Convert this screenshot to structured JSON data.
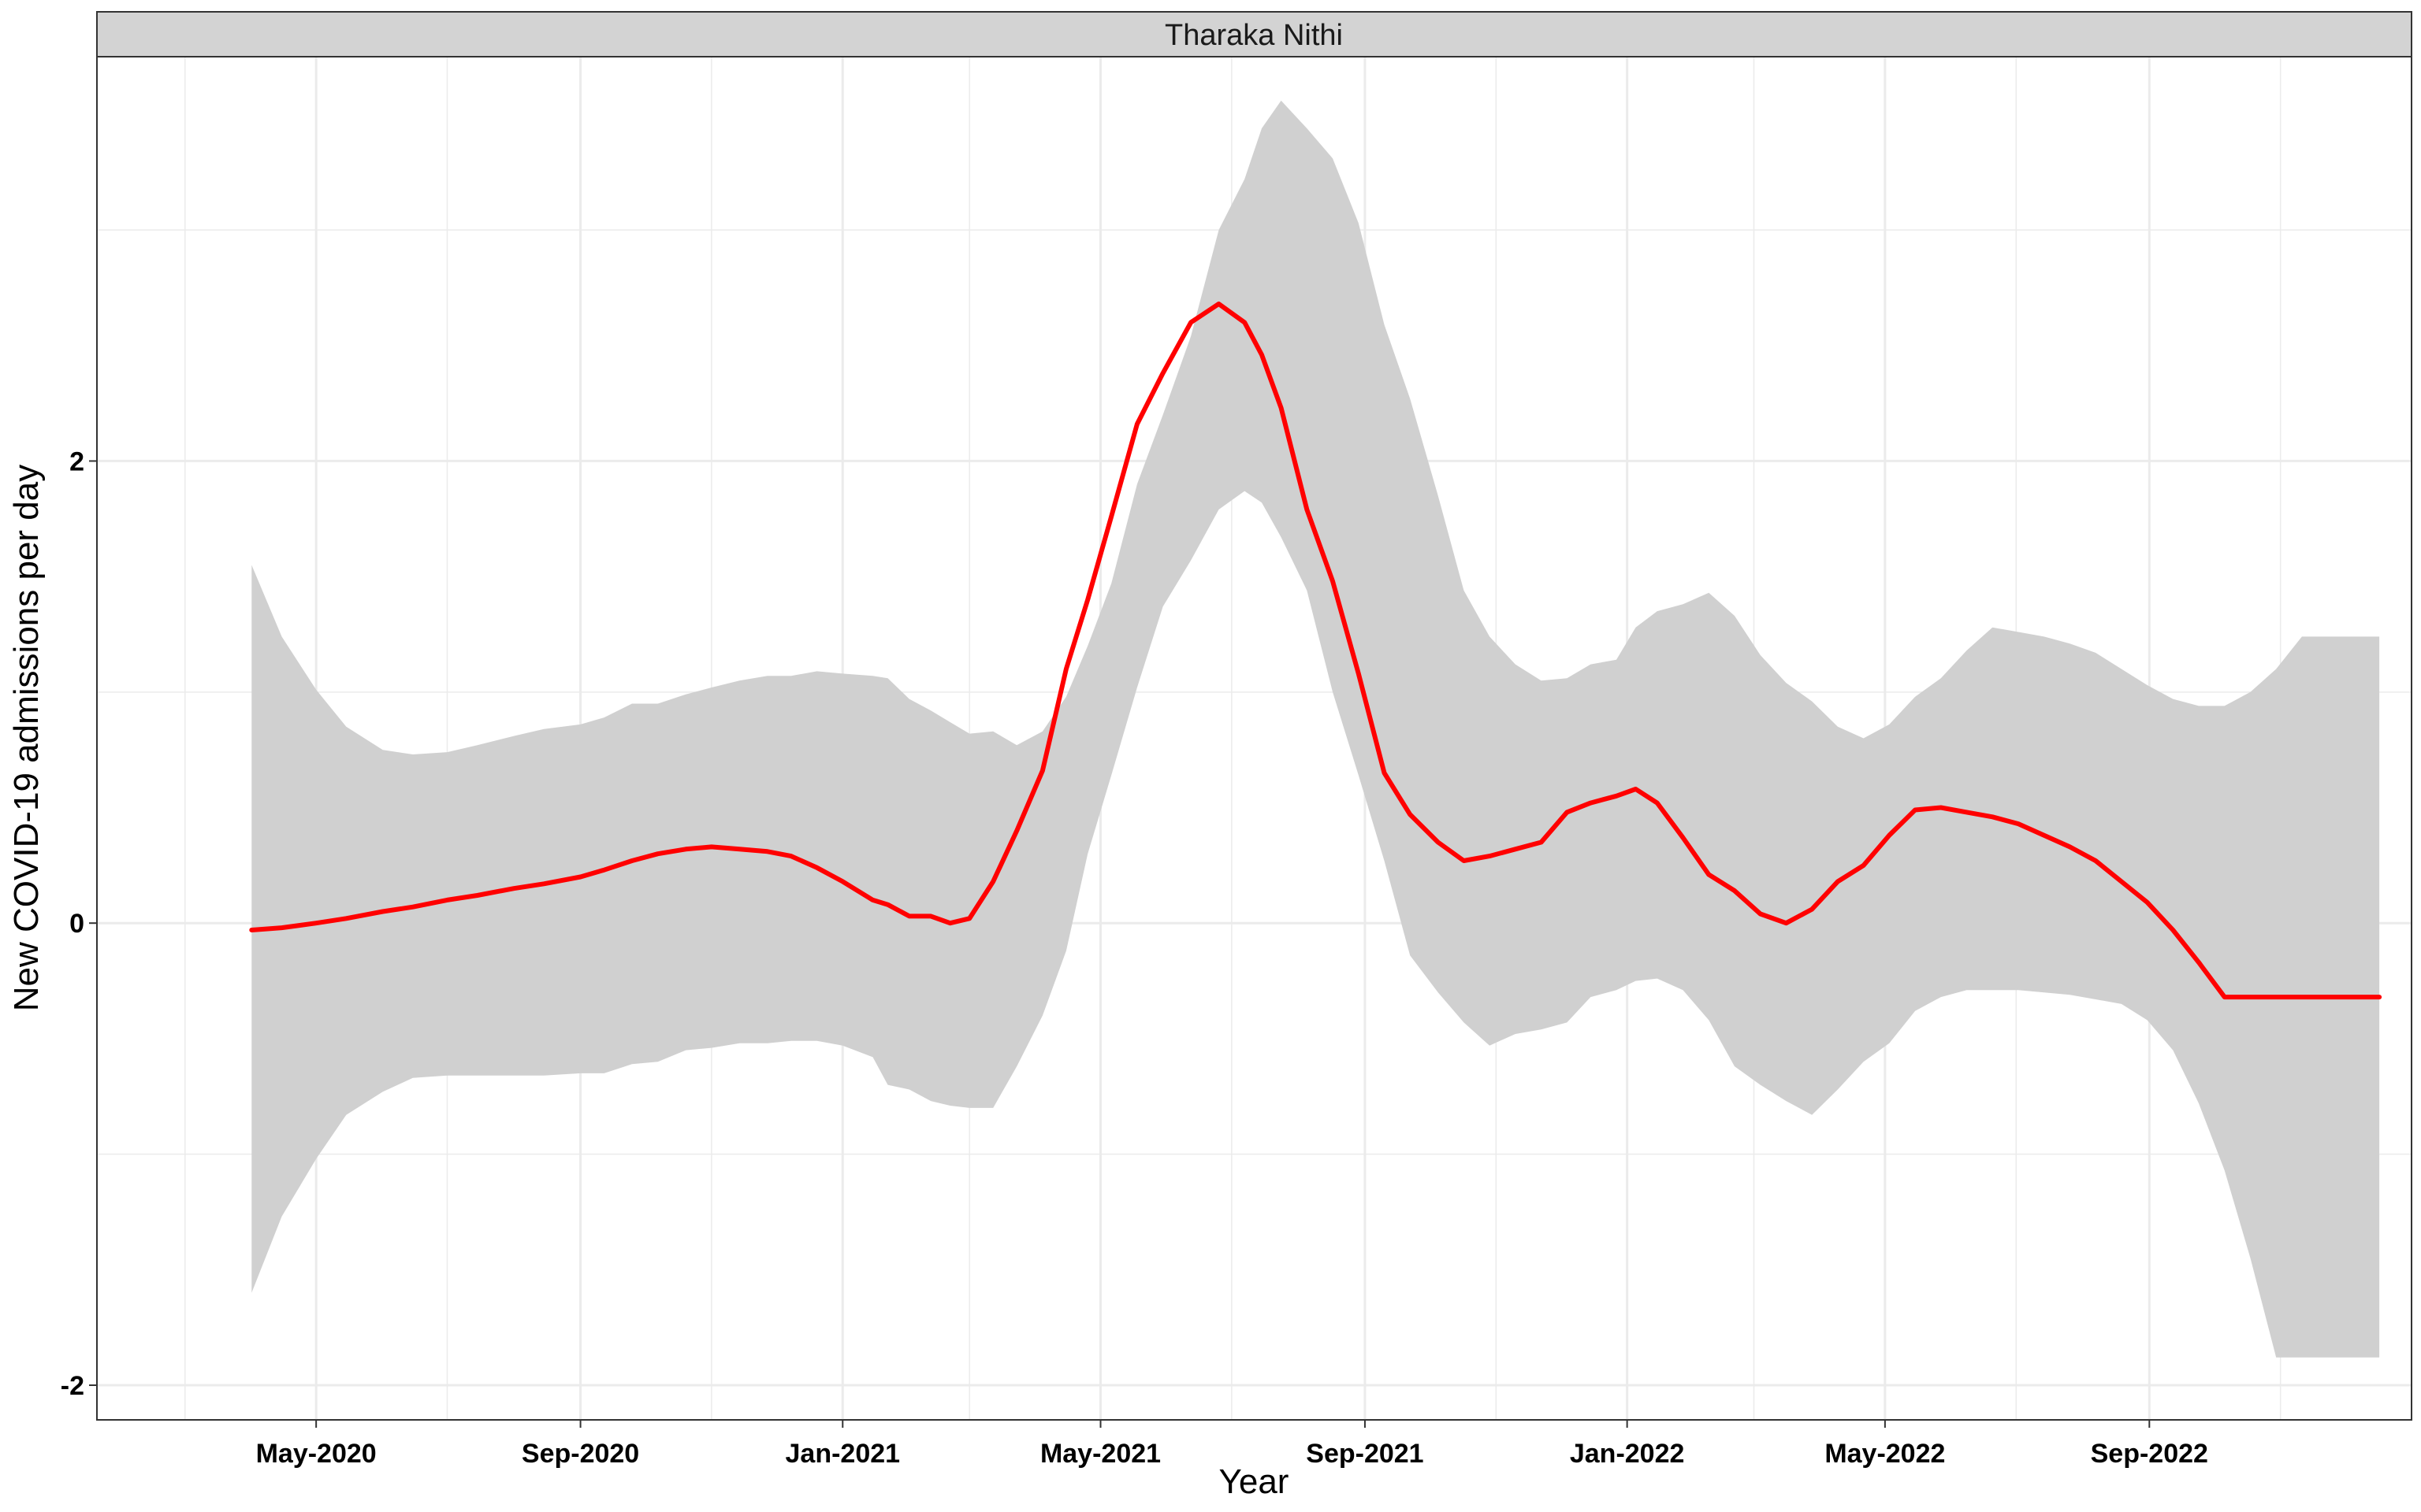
{
  "chart_data": {
    "type": "line",
    "facet_title": "Tharaka Nithi",
    "xlabel": "Year",
    "ylabel": "New COVID-19 admissions per day",
    "x_range": [
      "2020-01-20",
      "2023-01-01"
    ],
    "ylim": [
      -2.15,
      3.75
    ],
    "y_major_ticks": [
      -2,
      0,
      2
    ],
    "y_tick_labels": [
      "-2",
      "0",
      "2"
    ],
    "y_minor_ticks": [
      -1,
      1,
      3
    ],
    "x_major_ticks": [
      "2020-05-01",
      "2020-09-01",
      "2021-01-01",
      "2021-05-01",
      "2021-09-01",
      "2022-01-01",
      "2022-05-01",
      "2022-09-01"
    ],
    "x_tick_labels": [
      "May-2020",
      "Sep-2020",
      "Jan-2021",
      "May-2021",
      "Sep-2021",
      "Jan-2022",
      "May-2022",
      "Sep-2022"
    ],
    "x_minor_ticks": [
      "2020-03-01",
      "2020-07-01",
      "2020-11-01",
      "2021-03-01",
      "2021-07-01",
      "2021-11-01",
      "2022-03-01",
      "2022-07-01",
      "2022-11-01"
    ],
    "grid": true,
    "colors": {
      "line": "#ff0000",
      "ribbon": "#d0d0d0",
      "strip": "#d3d3d3",
      "grid": "#ebebeb"
    },
    "series": [
      {
        "x": [
          "2020-04-01",
          "2020-04-15",
          "2020-05-01",
          "2020-05-15",
          "2020-06-01",
          "2020-06-15",
          "2020-07-01",
          "2020-07-15",
          "2020-08-01",
          "2020-08-15",
          "2020-09-01",
          "2020-09-12",
          "2020-09-25",
          "2020-10-07",
          "2020-10-20",
          "2020-11-01",
          "2020-11-14",
          "2020-11-27",
          "2020-12-08",
          "2020-12-20",
          "2021-01-01",
          "2021-01-15",
          "2021-01-22",
          "2021-02-01",
          "2021-02-11",
          "2021-02-20",
          "2021-03-01",
          "2021-03-12",
          "2021-03-23",
          "2021-04-04",
          "2021-04-15",
          "2021-04-25",
          "2021-05-06",
          "2021-05-18",
          "2021-05-30",
          "2021-06-12",
          "2021-06-25",
          "2021-07-07",
          "2021-07-15",
          "2021-07-24",
          "2021-08-05",
          "2021-08-17",
          "2021-08-29",
          "2021-09-10",
          "2021-09-22",
          "2021-10-05",
          "2021-10-17",
          "2021-10-29",
          "2021-11-10",
          "2021-11-22",
          "2021-12-04",
          "2021-12-15",
          "2021-12-27",
          "2022-01-05",
          "2022-01-15",
          "2022-01-27",
          "2022-02-08",
          "2022-02-20",
          "2022-03-04",
          "2022-03-16",
          "2022-03-28",
          "2022-04-09",
          "2022-04-21",
          "2022-05-03",
          "2022-05-15",
          "2022-05-27",
          "2022-06-08",
          "2022-06-20",
          "2022-07-02",
          "2022-07-14",
          "2022-07-26",
          "2022-08-07",
          "2022-08-19",
          "2022-08-31",
          "2022-09-12",
          "2022-09-24",
          "2022-10-06",
          "2022-10-18",
          "2022-10-30",
          "2022-11-11",
          "2022-11-23",
          "2022-12-05",
          "2022-12-17"
        ],
        "y": [
          -0.03,
          -0.02,
          0.0,
          0.02,
          0.05,
          0.07,
          0.1,
          0.12,
          0.15,
          0.17,
          0.2,
          0.23,
          0.27,
          0.3,
          0.32,
          0.33,
          0.32,
          0.31,
          0.29,
          0.24,
          0.18,
          0.1,
          0.08,
          0.03,
          0.03,
          0.0,
          0.02,
          0.18,
          0.4,
          0.66,
          1.1,
          1.4,
          1.76,
          2.16,
          2.38,
          2.6,
          2.68,
          2.6,
          2.46,
          2.23,
          1.79,
          1.48,
          1.08,
          0.65,
          0.47,
          0.35,
          0.27,
          0.29,
          0.32,
          0.35,
          0.48,
          0.52,
          0.55,
          0.58,
          0.52,
          0.37,
          0.21,
          0.14,
          0.04,
          0.0,
          0.06,
          0.18,
          0.25,
          0.38,
          0.49,
          0.5,
          0.48,
          0.46,
          0.43,
          0.38,
          0.33,
          0.27,
          0.18,
          0.09,
          -0.03,
          -0.17,
          -0.32,
          -0.32,
          -0.32,
          -0.32,
          -0.32,
          -0.32,
          -0.32
        ],
        "ymin": [
          -1.6,
          -1.27,
          -1.02,
          -0.83,
          -0.73,
          -0.67,
          -0.66,
          -0.66,
          -0.66,
          -0.66,
          -0.65,
          -0.65,
          -0.61,
          -0.6,
          -0.55,
          -0.54,
          -0.52,
          -0.52,
          -0.51,
          -0.51,
          -0.53,
          -0.58,
          -0.7,
          -0.72,
          -0.77,
          -0.79,
          -0.8,
          -0.8,
          -0.62,
          -0.4,
          -0.12,
          0.3,
          0.64,
          1.02,
          1.37,
          1.57,
          1.79,
          1.87,
          1.82,
          1.67,
          1.44,
          1.0,
          0.64,
          0.27,
          -0.14,
          -0.3,
          -0.43,
          -0.53,
          -0.48,
          -0.46,
          -0.43,
          -0.32,
          -0.29,
          -0.25,
          -0.24,
          -0.29,
          -0.42,
          -0.62,
          -0.7,
          -0.77,
          -0.83,
          -0.72,
          -0.6,
          -0.52,
          -0.38,
          -0.32,
          -0.29,
          -0.29,
          -0.29,
          -0.3,
          -0.31,
          -0.33,
          -0.35,
          -0.42,
          -0.55,
          -0.78,
          -1.07,
          -1.45,
          -1.88,
          -1.88,
          -1.88,
          -1.88,
          -1.88
        ],
        "ymax": [
          1.55,
          1.24,
          1.01,
          0.85,
          0.75,
          0.73,
          0.74,
          0.77,
          0.81,
          0.84,
          0.86,
          0.89,
          0.95,
          0.95,
          0.99,
          1.02,
          1.05,
          1.07,
          1.07,
          1.09,
          1.08,
          1.07,
          1.06,
          0.97,
          0.92,
          0.87,
          0.82,
          0.83,
          0.77,
          0.83,
          0.98,
          1.2,
          1.47,
          1.9,
          2.2,
          2.54,
          3.0,
          3.22,
          3.44,
          3.56,
          3.44,
          3.31,
          3.03,
          2.59,
          2.27,
          1.85,
          1.44,
          1.24,
          1.12,
          1.05,
          1.06,
          1.12,
          1.14,
          1.28,
          1.35,
          1.38,
          1.43,
          1.33,
          1.16,
          1.04,
          0.96,
          0.85,
          0.8,
          0.86,
          0.98,
          1.06,
          1.18,
          1.28,
          1.26,
          1.24,
          1.21,
          1.17,
          1.1,
          1.03,
          0.97,
          0.94,
          0.94,
          1.0,
          1.1,
          1.24,
          1.24,
          1.24,
          1.24
        ]
      }
    ]
  }
}
